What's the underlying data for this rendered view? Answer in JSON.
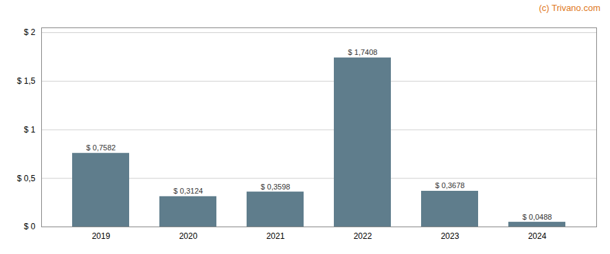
{
  "chart_data": {
    "type": "bar",
    "categories": [
      "2019",
      "2020",
      "2021",
      "2022",
      "2023",
      "2024"
    ],
    "values": [
      0.7582,
      0.3124,
      0.3598,
      1.7408,
      0.3678,
      0.0488
    ],
    "value_labels": [
      "$ 0,7582",
      "$ 0,3124",
      "$ 0,3598",
      "$ 1,7408",
      "$ 0,3678",
      "$ 0,0488"
    ],
    "data_labels": true,
    "color": "#5f7d8c",
    "ylim": [
      0,
      2.05
    ],
    "yticks": [
      {
        "value": 0,
        "label": "$ 0"
      },
      {
        "value": 0.5,
        "label": "$ 0,5"
      },
      {
        "value": 1.0,
        "label": "$ 1"
      },
      {
        "value": 1.5,
        "label": "$ 1,5"
      },
      {
        "value": 2.0,
        "label": "$ 2"
      }
    ],
    "grid": true,
    "annotations": [
      {
        "text": "(c) Trivano.com",
        "color": "#e07820"
      }
    ]
  }
}
